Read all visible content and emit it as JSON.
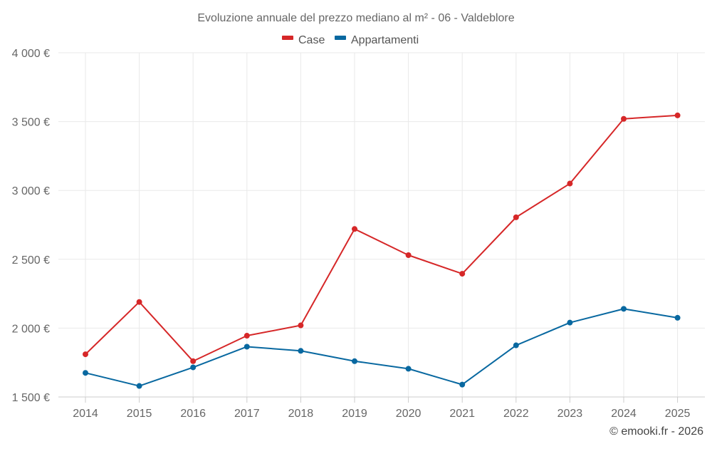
{
  "chart_data": {
    "type": "line",
    "title": "Evoluzione annuale del prezzo mediano al m² - 06 - Valdeblore",
    "xlabel": "",
    "ylabel": "",
    "x": [
      "2014",
      "2015",
      "2016",
      "2017",
      "2018",
      "2019",
      "2020",
      "2021",
      "2022",
      "2023",
      "2024",
      "2025"
    ],
    "ylim": [
      1500,
      4000
    ],
    "yticks": [
      1500,
      2000,
      2500,
      3000,
      3500,
      4000
    ],
    "ytick_labels": [
      "1 500 €",
      "2 000 €",
      "2 500 €",
      "3 000 €",
      "3 500 €",
      "4 000 €"
    ],
    "grid": true,
    "legend_position": "top-center",
    "series": [
      {
        "name": "Case",
        "color": "#d62728",
        "values": [
          1810,
          2190,
          1760,
          1945,
          2020,
          2720,
          2530,
          2395,
          2805,
          3050,
          3520,
          3545
        ]
      },
      {
        "name": "Appartamenti",
        "color": "#0868a0",
        "values": [
          1675,
          1580,
          1715,
          1865,
          1835,
          1760,
          1705,
          1590,
          1875,
          2040,
          2140,
          2075
        ]
      }
    ]
  },
  "credit": "© emooki.fr - 2026"
}
